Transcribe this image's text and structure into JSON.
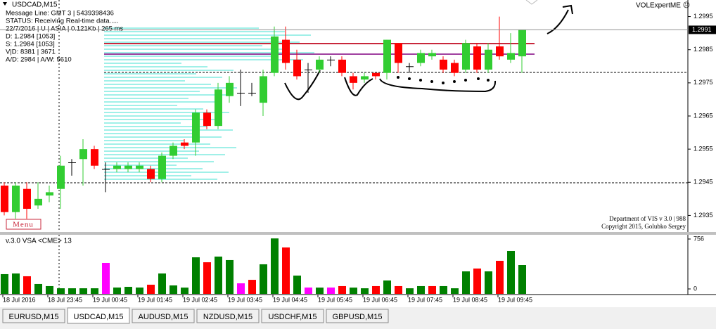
{
  "chart_data": [
    {
      "type": "candlestick",
      "title": "USDCAD,M15",
      "info_lines": [
        "Message Line: GMT 3 | 5439398436",
        "STATUS:  Receiving Real-time data.....",
        "22/7/2016 | U | ASIA | 0.121Kb | 265 ms",
        "D: 1.2984  [1053]",
        "S: 1.2984  [1053]",
        "V|D: 8381 | 3671",
        "A/D: 2984 | A/W: 5610"
      ],
      "indicator_name": "VOLExpertME ☹",
      "credits": [
        "Department of VIS v 3.0 | 988",
        "Copyright 2015, Golubko Sergey"
      ],
      "menu_button": "Menu",
      "x": [
        "18 Jul 2016",
        null,
        null,
        null,
        "18 Jul 23:45",
        null,
        null,
        null,
        "19 Jul 00:45",
        null,
        null,
        null,
        "19 Jul 01:45",
        null,
        null,
        null,
        "19 Jul 02:45",
        null,
        null,
        null,
        "19 Jul 03:45",
        null,
        null,
        null,
        "19 Jul 04:45",
        null,
        null,
        null,
        "19 Jul 05:45",
        null,
        null,
        null,
        "19 Jul 06:45",
        null,
        null,
        null,
        "19 Jul 07:45",
        null,
        null,
        null,
        "19 Jul 08:45",
        null,
        null,
        null,
        "19 Jul 09:45",
        null,
        null
      ],
      "open": [
        1.2944,
        1.2936,
        1.2943,
        1.2938,
        1.2941,
        1.2943,
        1.2951,
        1.2952,
        1.2955,
        1.2949,
        1.2949,
        1.2949,
        1.2949,
        1.2949,
        1.2946,
        1.2953,
        1.2957,
        1.2957,
        1.2966,
        1.2962,
        1.2971,
        1.2972,
        1.2972,
        1.2969,
        1.2978,
        1.2988,
        1.2982,
        1.2979,
        1.2979,
        1.2982,
        1.2982,
        1.2977,
        1.2976,
        1.2978,
        1.2978,
        1.2987,
        1.298,
        1.2981,
        1.2983,
        1.2982,
        1.2981,
        1.2979,
        1.2986,
        1.2979,
        1.2986,
        1.2982,
        1.2983
      ],
      "high": [
        1.2945,
        1.2945,
        1.2945,
        1.2945,
        1.2944,
        1.2953,
        1.2952,
        1.2958,
        1.2956,
        1.2951,
        1.2951,
        1.2951,
        1.2951,
        1.295,
        1.2954,
        1.2957,
        1.2958,
        1.2967,
        1.2967,
        1.2975,
        1.2977,
        1.2979,
        1.2975,
        1.2979,
        1.2992,
        1.2992,
        1.2985,
        1.2981,
        1.2983,
        1.2983,
        1.2983,
        1.2978,
        1.2978,
        1.2978,
        1.2988,
        1.2987,
        1.2981,
        1.2985,
        1.2985,
        1.2983,
        1.2982,
        1.2988,
        1.2987,
        1.2987,
        1.2995,
        1.299,
        1.2991
      ],
      "low": [
        1.2935,
        1.2934,
        1.2934,
        1.2937,
        1.2939,
        1.2937,
        1.2947,
        1.2944,
        1.2949,
        1.2942,
        1.2948,
        1.2948,
        1.2948,
        1.2945,
        1.2945,
        1.2952,
        1.2955,
        1.2953,
        1.2961,
        1.2961,
        1.2969,
        1.2968,
        1.2971,
        1.2965,
        1.2977,
        1.2979,
        1.2976,
        1.2972,
        1.2978,
        1.298,
        1.2977,
        1.2973,
        1.2975,
        1.2976,
        1.2976,
        1.2978,
        1.2978,
        1.298,
        1.2982,
        1.2978,
        1.2977,
        1.2978,
        1.2978,
        1.2978,
        1.2982,
        1.2981,
        1.2978
      ],
      "close": [
        1.2936,
        1.2944,
        1.2937,
        1.294,
        1.2942,
        1.295,
        1.2951,
        1.2955,
        1.295,
        1.2949,
        1.295,
        1.295,
        1.295,
        1.2946,
        1.2953,
        1.2956,
        1.2956,
        1.2966,
        1.2962,
        1.2973,
        1.2975,
        1.2972,
        1.2972,
        1.2977,
        1.2989,
        1.2981,
        1.2977,
        1.2979,
        1.2982,
        1.2982,
        1.2978,
        1.2975,
        1.2977,
        1.2977,
        1.2988,
        1.2981,
        1.298,
        1.2984,
        1.2984,
        1.2979,
        1.2978,
        1.2987,
        1.2979,
        1.2985,
        1.2983,
        1.2984,
        1.2991
      ],
      "up_color": "#32cd32",
      "down_color": "#ff0000",
      "ylim": [
        1.293,
        1.3
      ],
      "yticks": [
        1.2995,
        1.2985,
        1.2975,
        1.2965,
        1.2955,
        1.2945,
        1.2935
      ],
      "current_price": 1.2991
    },
    {
      "type": "volume",
      "title": "v.3.0 VSA <CME> 13",
      "values": [
        224,
        234,
        192,
        75,
        43,
        10,
        10,
        10,
        10,
        394,
        21,
        32,
        21,
        64,
        234,
        53,
        20,
        479,
        404,
        490,
        437,
        85,
        138,
        373,
        765,
        628,
        202,
        21,
        20,
        21,
        43,
        20,
        10,
        43,
        128,
        43,
        10,
        43,
        43,
        43,
        10,
        266,
        309,
        266,
        426,
        575,
        362
      ],
      "colors": [
        "#008000",
        "#008000",
        "#ff0000",
        "#008000",
        "#008000",
        "#008000",
        "#008000",
        "#008000",
        "#008000",
        "#ff00ff",
        "#008000",
        "#008000",
        "#008000",
        "#ff0000",
        "#008000",
        "#008000",
        "#008000",
        "#008000",
        "#ff0000",
        "#008000",
        "#008000",
        "#ff00ff",
        "#ff0000",
        "#008000",
        "#008000",
        "#ff0000",
        "#008000",
        "#ff00ff",
        "#008000",
        "#ff00ff",
        "#ff0000",
        "#008000",
        "#008000",
        "#ff0000",
        "#008000",
        "#ff0000",
        "#008000",
        "#008000",
        "#ff0000",
        "#008000",
        "#008000",
        "#008000",
        "#ff0000",
        "#008000",
        "#ff0000",
        "#008000",
        "#008000"
      ],
      "ylim": [
        0,
        756
      ],
      "yticks": [
        756,
        0
      ]
    }
  ],
  "tabs": [
    "EURUSD,M15",
    "USDCAD,M15",
    "AUDUSD,M15",
    "NZDUSD,M15",
    "USDCHF,M15",
    "GBPUSD,M15"
  ],
  "active_tab": 1
}
